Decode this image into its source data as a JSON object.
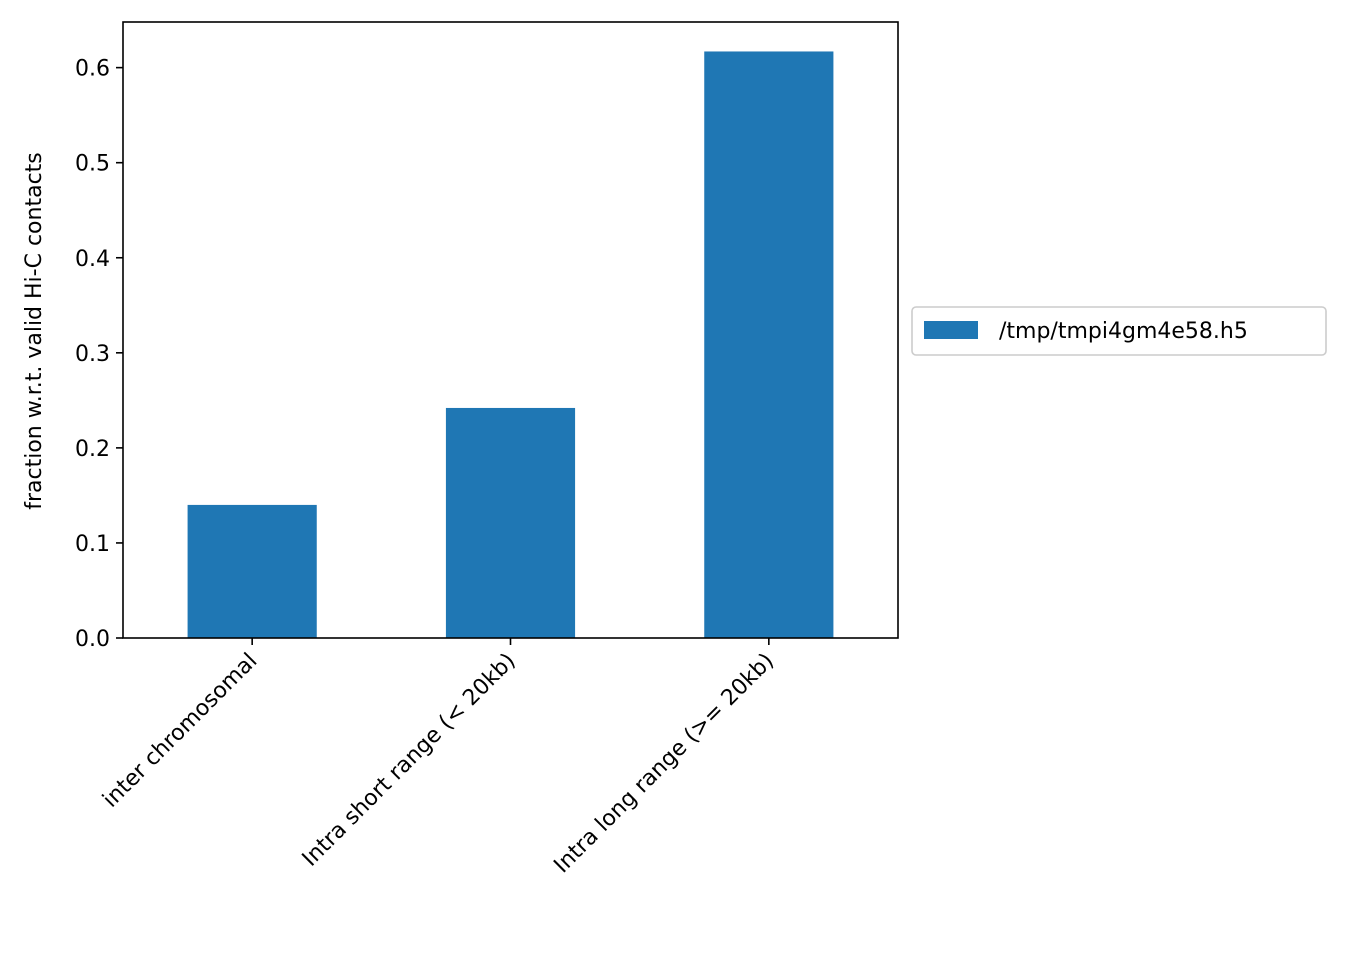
{
  "chart_data": {
    "type": "bar",
    "title": "",
    "xlabel": "",
    "ylabel": "fraction w.r.t. valid Hi-C contacts",
    "categories": [
      "inter chromosomal",
      "Intra short range (< 20kb)",
      "Intra long range (>= 20kb)"
    ],
    "series": [
      {
        "name": "/tmp/tmpi4gm4e58.h5",
        "values": [
          0.14,
          0.242,
          0.617
        ],
        "color": "#1f77b4"
      }
    ],
    "ylim": [
      0,
      0.648
    ],
    "yticks": [
      0.0,
      0.1,
      0.2,
      0.3,
      0.4,
      0.5,
      0.6
    ],
    "ytick_labels": [
      "0.0",
      "0.1",
      "0.2",
      "0.3",
      "0.4",
      "0.5",
      "0.6"
    ],
    "grid": false,
    "legend_position": "outside-right"
  }
}
